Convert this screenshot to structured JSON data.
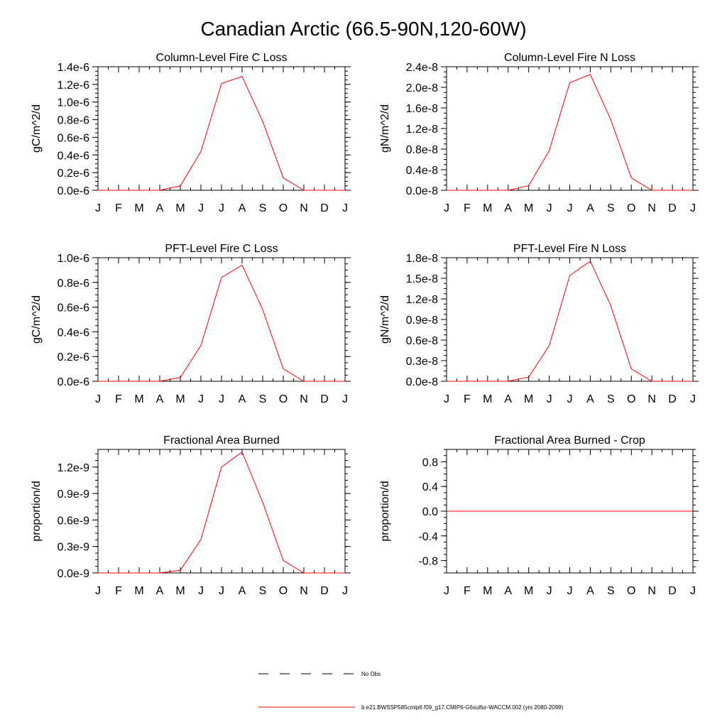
{
  "figure": {
    "title": "Canadian Arctic (66.5-90N,120-60W)"
  },
  "colors": {
    "series": "#ff0000",
    "axes": "#000000",
    "background": "#ffffff"
  },
  "legend": {
    "position": "bottom-center",
    "entries": [
      {
        "label": "No Obs",
        "color": "#000000",
        "style": "dashed"
      },
      {
        "label": "b.e21.BWSSP585cmip6.f09_g17.CMIP6-G6sulfur-WACCM.002 (yrs 2080-2099)",
        "color": "#ff0000",
        "style": "solid"
      }
    ]
  },
  "chart_data": [
    {
      "type": "line",
      "title": "Column-Level Fire C Loss",
      "xlabel": "",
      "ylabel": "gC/m^2/d",
      "x": [
        "J",
        "F",
        "M",
        "A",
        "M",
        "J",
        "J",
        "A",
        "S",
        "O",
        "N",
        "D",
        "J"
      ],
      "ylim": [
        0,
        1.4e-06
      ],
      "yticks": [
        0,
        2e-07,
        4e-07,
        6e-07,
        8e-07,
        1e-06,
        1.2e-06,
        1.4e-06
      ],
      "ytick_labels": [
        "0.0e-6",
        "0.2e-6",
        "0.4e-6",
        "0.6e-6",
        "0.8e-6",
        "1.0e-6",
        "1.2e-6",
        "1.4e-6"
      ],
      "grid": false,
      "series": [
        {
          "name": "b.e21.BWSSP585cmip6.f09_g17.CMIP6-G6sulfur-WACCM.002 (yrs 2080-2099)",
          "values": [
            0,
            0,
            0,
            0,
            5e-08,
            4.4e-07,
            1.21e-06,
            1.29e-06,
            7.8e-07,
            1.4e-07,
            0,
            0,
            0
          ]
        }
      ]
    },
    {
      "type": "line",
      "title": "Column-Level Fire N Loss",
      "xlabel": "",
      "ylabel": "gN/m^2/d",
      "x": [
        "J",
        "F",
        "M",
        "A",
        "M",
        "J",
        "J",
        "A",
        "S",
        "O",
        "N",
        "D",
        "J"
      ],
      "ylim": [
        0,
        2.4e-08
      ],
      "yticks": [
        0,
        4e-09,
        8e-09,
        1.2e-08,
        1.6e-08,
        2e-08,
        2.4e-08
      ],
      "ytick_labels": [
        "0.0e-8",
        "0.4e-8",
        "0.8e-8",
        "1.2e-8",
        "1.6e-8",
        "2.0e-8",
        "2.4e-8"
      ],
      "grid": false,
      "series": [
        {
          "name": "b.e21.BWSSP585cmip6.f09_g17.CMIP6-G6sulfur-WACCM.002 (yrs 2080-2099)",
          "values": [
            0,
            0,
            0,
            0,
            9e-10,
            7.7e-09,
            2.09e-08,
            2.25e-08,
            1.37e-08,
            2.4e-09,
            0,
            0,
            0
          ]
        }
      ]
    },
    {
      "type": "line",
      "title": "PFT-Level Fire C Loss",
      "xlabel": "",
      "ylabel": "gC/m^2/d",
      "x": [
        "J",
        "F",
        "M",
        "A",
        "M",
        "J",
        "J",
        "A",
        "S",
        "O",
        "N",
        "D",
        "J"
      ],
      "ylim": [
        0,
        1e-06
      ],
      "yticks": [
        0,
        2e-07,
        4e-07,
        6e-07,
        8e-07,
        1e-06
      ],
      "ytick_labels": [
        "0.0e-6",
        "0.2e-6",
        "0.4e-6",
        "0.6e-6",
        "0.8e-6",
        "1.0e-6"
      ],
      "grid": false,
      "series": [
        {
          "name": "b.e21.BWSSP585cmip6.f09_g17.CMIP6-G6sulfur-WACCM.002 (yrs 2080-2099)",
          "values": [
            0,
            0,
            0,
            0,
            3e-08,
            2.9e-07,
            8.4e-07,
            9.4e-07,
            5.8e-07,
            1e-07,
            0,
            0,
            0
          ]
        }
      ]
    },
    {
      "type": "line",
      "title": "PFT-Level Fire N Loss",
      "xlabel": "",
      "ylabel": "gN/m^2/d",
      "x": [
        "J",
        "F",
        "M",
        "A",
        "M",
        "J",
        "J",
        "A",
        "S",
        "O",
        "N",
        "D",
        "J"
      ],
      "ylim": [
        0,
        1.8e-08
      ],
      "yticks": [
        0,
        3e-09,
        6e-09,
        9e-09,
        1.2e-08,
        1.5e-08,
        1.8e-08
      ],
      "ytick_labels": [
        "0.0e-8",
        "0.3e-8",
        "0.6e-8",
        "0.9e-8",
        "1.2e-8",
        "1.5e-8",
        "1.8e-8"
      ],
      "grid": false,
      "series": [
        {
          "name": "b.e21.BWSSP585cmip6.f09_g17.CMIP6-G6sulfur-WACCM.002 (yrs 2080-2099)",
          "values": [
            0,
            0,
            0,
            0,
            6e-10,
            5.2e-09,
            1.54e-08,
            1.75e-08,
            1.1e-08,
            1.8e-09,
            0,
            0,
            0
          ]
        }
      ]
    },
    {
      "type": "line",
      "title": "Fractional Area Burned",
      "xlabel": "",
      "ylabel": "proportion/d",
      "x": [
        "J",
        "F",
        "M",
        "A",
        "M",
        "J",
        "J",
        "A",
        "S",
        "O",
        "N",
        "D",
        "J"
      ],
      "ylim": [
        0,
        1.4e-09
      ],
      "yticks": [
        0,
        3e-10,
        6e-10,
        9e-10,
        1.2e-09
      ],
      "ytick_labels": [
        "0.0e-9",
        "0.3e-9",
        "0.6e-9",
        "0.9e-9",
        "1.2e-9"
      ],
      "grid": false,
      "series": [
        {
          "name": "b.e21.BWSSP585cmip6.f09_g17.CMIP6-G6sulfur-WACCM.002 (yrs 2080-2099)",
          "values": [
            0,
            0,
            0,
            0,
            3e-11,
            3.8e-10,
            1.2e-09,
            1.37e-09,
            8e-10,
            1.4e-10,
            0,
            0,
            0
          ]
        }
      ]
    },
    {
      "type": "line",
      "title": "Fractional Area Burned - Crop",
      "xlabel": "",
      "ylabel": "proportion/d",
      "x": [
        "J",
        "F",
        "M",
        "A",
        "M",
        "J",
        "J",
        "A",
        "S",
        "O",
        "N",
        "D",
        "J"
      ],
      "ylim": [
        -1.0,
        1.0
      ],
      "yticks": [
        -0.8,
        -0.4,
        0,
        0.4,
        0.8
      ],
      "ytick_labels": [
        "-0.8",
        "-0.4",
        "0.0",
        "0.4",
        "0.8"
      ],
      "grid": false,
      "series": [
        {
          "name": "b.e21.BWSSP585cmip6.f09_g17.CMIP6-G6sulfur-WACCM.002 (yrs 2080-2099)",
          "values": [
            0,
            0,
            0,
            0,
            0,
            0,
            0,
            0,
            0,
            0,
            0,
            0,
            0
          ]
        }
      ]
    }
  ]
}
